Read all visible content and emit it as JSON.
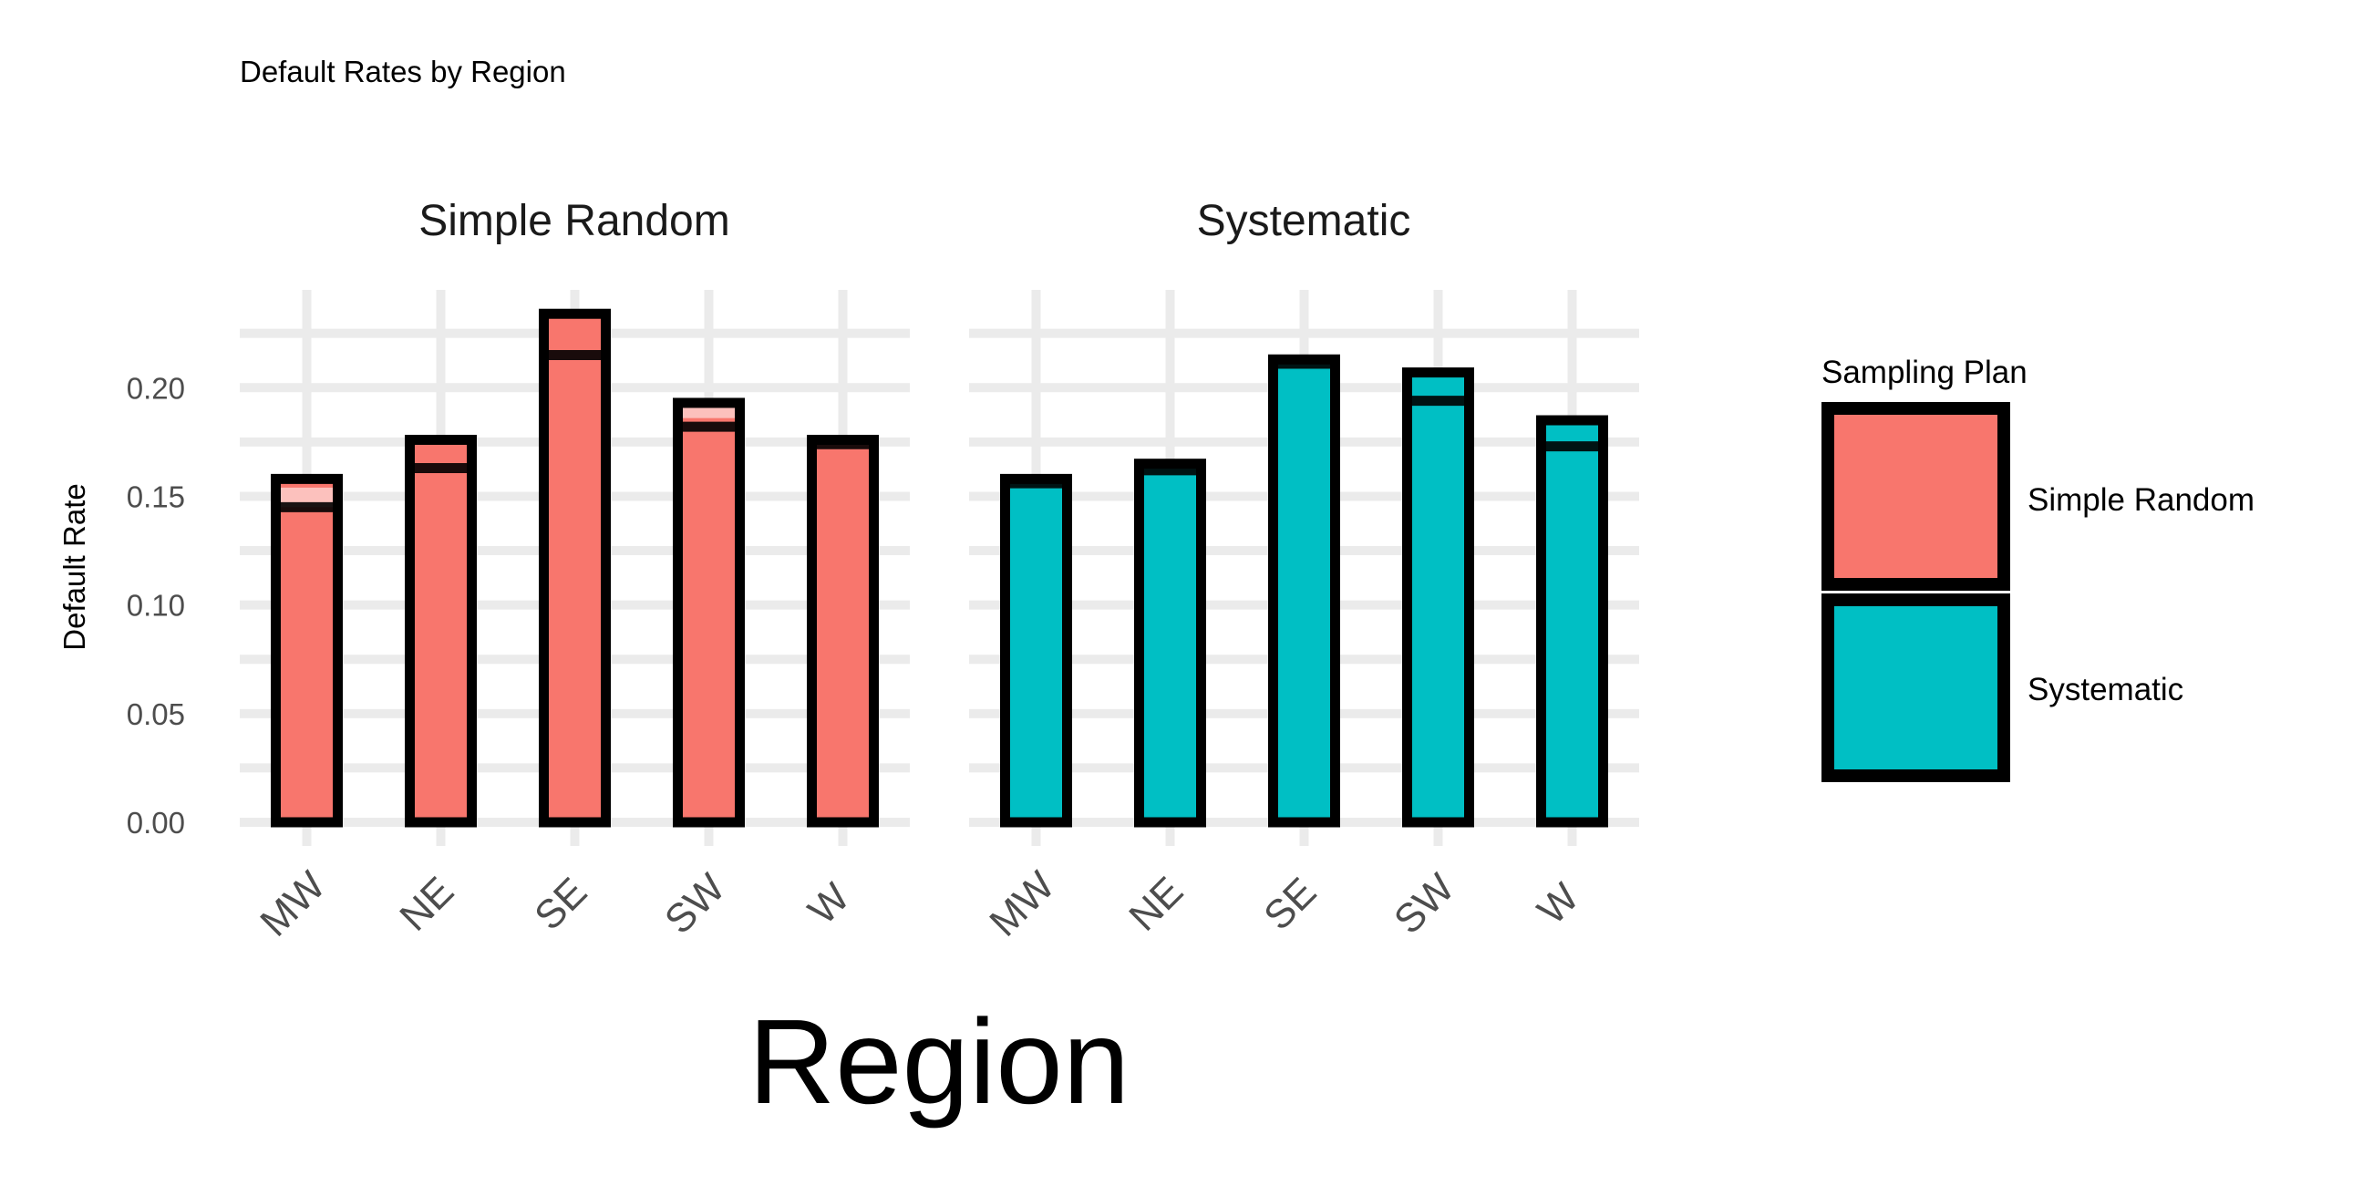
{
  "chart_data": {
    "type": "bar",
    "title": "Default Rates by Region",
    "xlabel": "Region",
    "ylabel": "Default Rate",
    "ylim": [
      0,
      0.245
    ],
    "yticks": [
      0.0,
      0.05,
      0.1,
      0.15,
      0.2
    ],
    "ytick_labels": [
      "0.00",
      "0.05",
      "0.10",
      "0.15",
      "0.20"
    ],
    "grid": true,
    "legend": {
      "title": "Sampling Plan",
      "position": "right",
      "entries": [
        {
          "label": "Simple Random",
          "color": "#F8766D"
        },
        {
          "label": "Systematic",
          "color": "#00BFC4"
        }
      ]
    },
    "categories": [
      "MW",
      "NE",
      "SE",
      "SW",
      "W"
    ],
    "panels": [
      {
        "name": "Simple Random",
        "color": "#F8766D",
        "values": [
          0.158,
          0.176,
          0.234,
          0.193,
          0.176
        ],
        "inner_lines": [
          0.145,
          0.163,
          0.215,
          0.182,
          0.174
        ],
        "highlight_band": [
          [
            0.145,
            0.154
          ],
          null,
          null,
          [
            0.186,
            0.191
          ],
          null
        ]
      },
      {
        "name": "Systematic",
        "color": "#00BFC4",
        "values": [
          0.158,
          0.165,
          0.213,
          0.207,
          0.185
        ],
        "inner_lines": [
          0.156,
          0.162,
          0.211,
          0.194,
          0.173
        ],
        "highlight_band": [
          null,
          null,
          null,
          null,
          null
        ]
      }
    ]
  }
}
